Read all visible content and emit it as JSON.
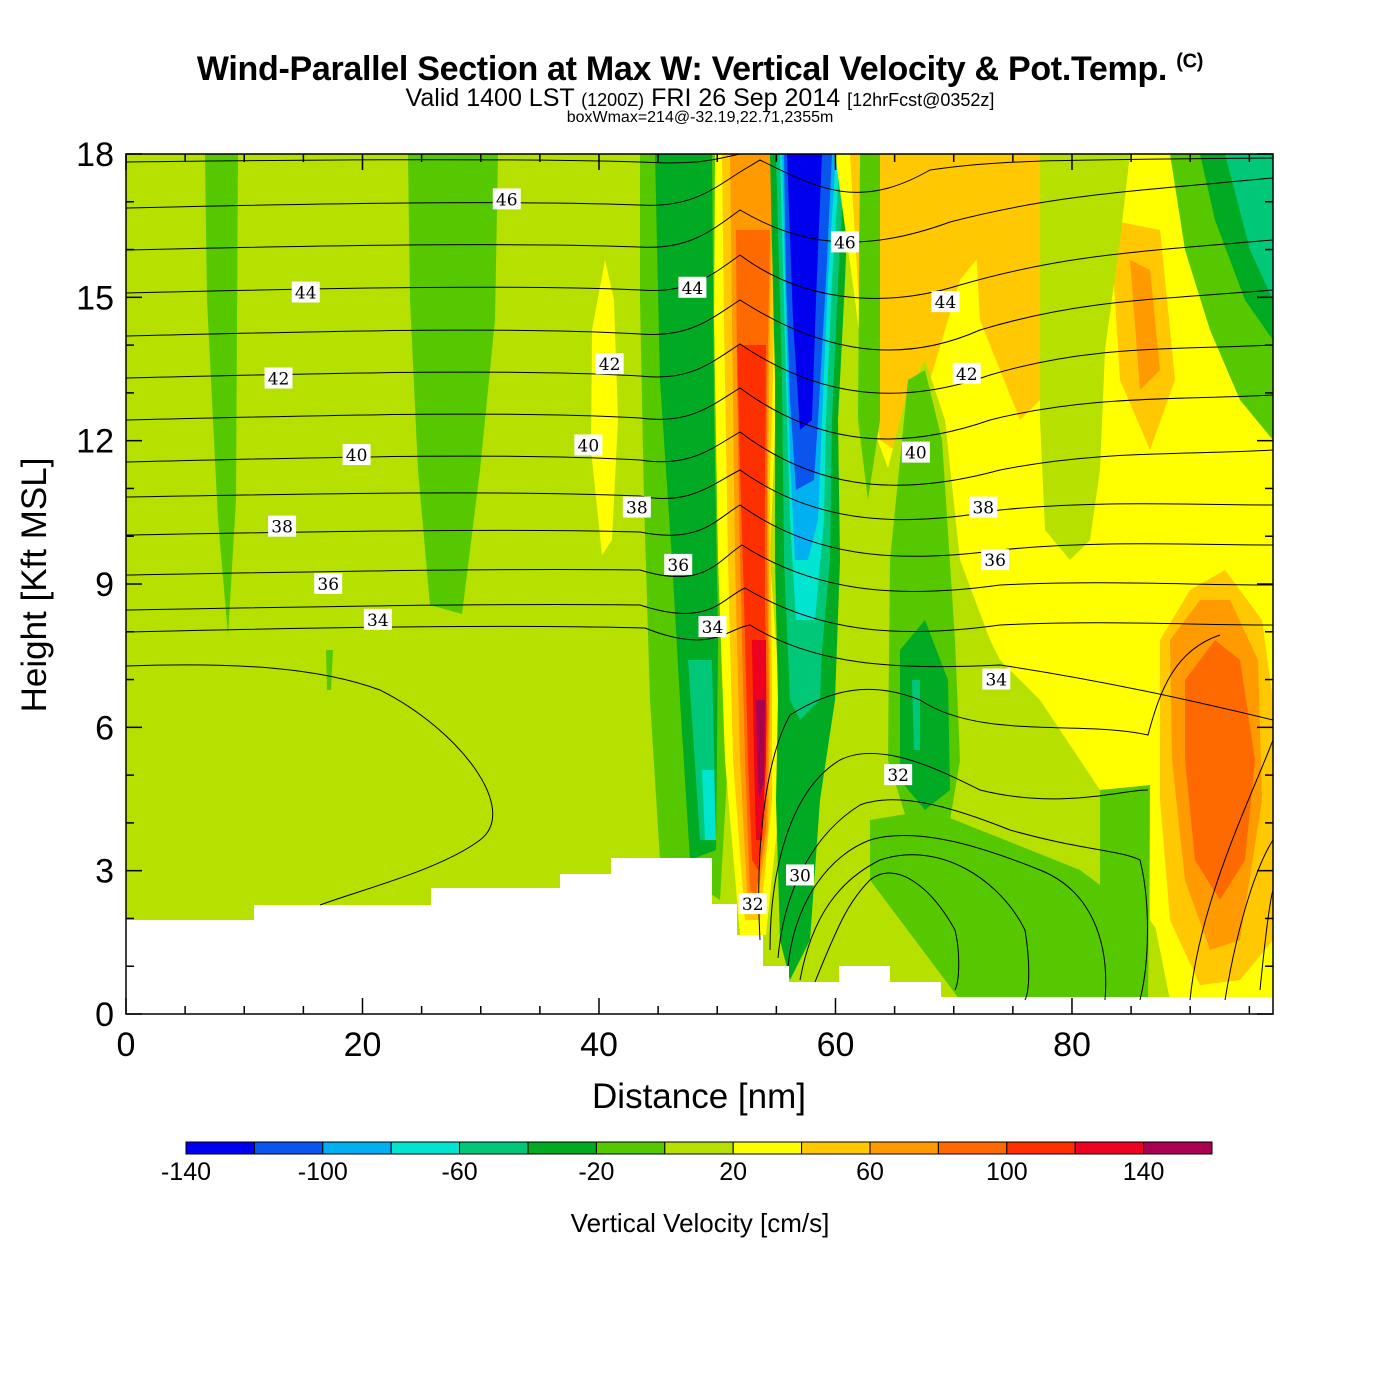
{
  "header": {
    "title_main": "Wind-Parallel Section at Max W: Vertical Velocity & Pot.Temp.",
    "title_copyright": "(C)",
    "valid_prefix": "Valid 1400 LST",
    "valid_utc": "(1200Z)",
    "valid_date": "FRI 26 Sep 2014",
    "forecast_info": "[12hrFcst@0352z]",
    "box_info": "boxWmax=214@-32.19,22.71,2355m"
  },
  "chart_data": {
    "type": "heatmap",
    "xlabel": "Distance [nm]",
    "ylabel": "Height [Kft MSL]",
    "xlim": [
      0,
      97
    ],
    "ylim": [
      0,
      18
    ],
    "x_ticks": [
      0,
      20,
      40,
      60,
      80
    ],
    "y_ticks": [
      0,
      3,
      6,
      9,
      12,
      15,
      18
    ],
    "grid": false,
    "colorbar": {
      "title": "Vertical Velocity [cm/s]",
      "levels": [
        -140,
        -120,
        -100,
        -80,
        -60,
        -40,
        -20,
        0,
        20,
        40,
        60,
        80,
        100,
        120,
        140,
        160
      ],
      "tick_labels": [
        "-140",
        "-100",
        "-60",
        "-20",
        "20",
        "60",
        "100",
        "140"
      ],
      "colors": [
        "#0000ee",
        "#0a55ee",
        "#00b0f0",
        "#00e5d0",
        "#00c878",
        "#00aa22",
        "#55c800",
        "#b5e000",
        "#ffff00",
        "#ffc800",
        "#ff9a00",
        "#ff6a00",
        "#ff3000",
        "#ee0020",
        "#aa0050"
      ]
    },
    "updraft_column": {
      "x": 54,
      "w_max": 214,
      "height_m": 2355
    },
    "downdraft_column": {
      "x": 57.5,
      "w_min": -140
    },
    "isentrope_labels": [
      {
        "text": "46",
        "x": 32.2,
        "y": 17.05
      },
      {
        "text": "44",
        "x": 15.2,
        "y": 15.1
      },
      {
        "text": "42",
        "x": 12.9,
        "y": 13.3
      },
      {
        "text": "40",
        "x": 19.5,
        "y": 11.7
      },
      {
        "text": "38",
        "x": 13.2,
        "y": 10.2
      },
      {
        "text": "36",
        "x": 17.1,
        "y": 9.0
      },
      {
        "text": "34",
        "x": 21.3,
        "y": 8.25
      },
      {
        "text": "44",
        "x": 47.9,
        "y": 15.2
      },
      {
        "text": "42",
        "x": 40.9,
        "y": 13.6
      },
      {
        "text": "40",
        "x": 39.1,
        "y": 11.9
      },
      {
        "text": "38",
        "x": 43.2,
        "y": 10.6
      },
      {
        "text": "36",
        "x": 46.7,
        "y": 9.4
      },
      {
        "text": "34",
        "x": 49.6,
        "y": 8.1
      },
      {
        "text": "46",
        "x": 60.8,
        "y": 16.15
      },
      {
        "text": "44",
        "x": 69.3,
        "y": 14.9
      },
      {
        "text": "42",
        "x": 71.1,
        "y": 13.4
      },
      {
        "text": "40",
        "x": 66.8,
        "y": 11.75
      },
      {
        "text": "38",
        "x": 72.5,
        "y": 10.6
      },
      {
        "text": "36",
        "x": 73.5,
        "y": 9.5
      },
      {
        "text": "34",
        "x": 73.6,
        "y": 7.0
      },
      {
        "text": "32",
        "x": 65.3,
        "y": 5.0
      },
      {
        "text": "30",
        "x": 57.0,
        "y": 2.9
      },
      {
        "text": "32",
        "x": 53.0,
        "y": 2.3
      }
    ]
  }
}
